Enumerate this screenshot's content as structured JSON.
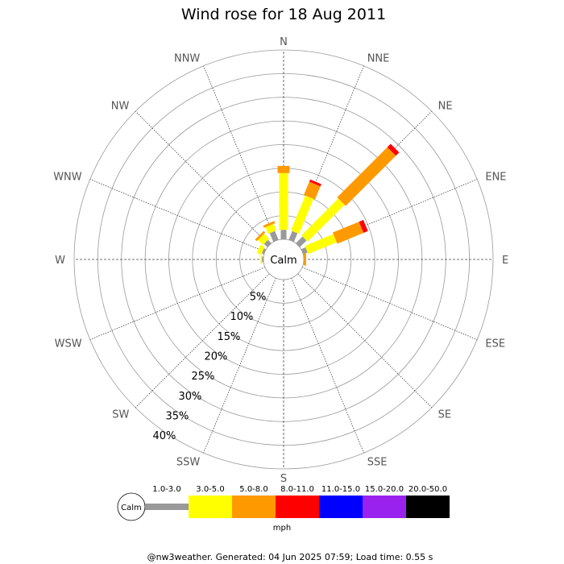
{
  "chart_data": {
    "type": "wind-rose",
    "title": "Wind rose for 18 Aug 2011",
    "directions": [
      "N",
      "NNE",
      "NE",
      "ENE",
      "E",
      "ESE",
      "SE",
      "SSE",
      "S",
      "SSW",
      "SW",
      "WSW",
      "W",
      "WNW",
      "NW",
      "NNW"
    ],
    "ring_labels": [
      "5%",
      "10%",
      "15%",
      "20%",
      "25%",
      "30%",
      "35%",
      "40%"
    ],
    "ring_max_pct": 40,
    "calm_label": "Calm",
    "bins": [
      {
        "label": "1.0-3.0",
        "color": "#999999"
      },
      {
        "label": "3.0-5.0",
        "color": "#ffff00"
      },
      {
        "label": "5.0-8.0",
        "color": "#ff9900"
      },
      {
        "label": "8.0-11.0",
        "color": "#ff0000"
      },
      {
        "label": "11.0-15.0",
        "color": "#0000ff"
      },
      {
        "label": "15.0-20.0",
        "color": "#9922ee"
      },
      {
        "label": "20.0-50.0",
        "color": "#000000"
      }
    ],
    "units": "mph",
    "calm_pct": 2.5,
    "series": [
      {
        "direction": "N",
        "values": [
          2.0,
          12.0,
          1.5,
          0.0,
          0,
          0,
          0
        ]
      },
      {
        "direction": "NNE",
        "values": [
          2.0,
          8.0,
          3.0,
          0.5,
          0,
          0,
          0
        ]
      },
      {
        "direction": "NE",
        "values": [
          2.0,
          11.0,
          15.0,
          1.0,
          0,
          0,
          0
        ]
      },
      {
        "direction": "ENE",
        "values": [
          1.0,
          6.5,
          6.0,
          1.0,
          0,
          0,
          0
        ]
      },
      {
        "direction": "E",
        "values": [
          0.0,
          0.0,
          0.5,
          0.0,
          0,
          0,
          0
        ]
      },
      {
        "direction": "ESE",
        "values": [
          0,
          0,
          0,
          0,
          0,
          0,
          0
        ]
      },
      {
        "direction": "SE",
        "values": [
          0,
          0,
          0,
          0,
          0,
          0,
          0
        ]
      },
      {
        "direction": "SSE",
        "values": [
          0,
          0,
          0,
          0,
          0,
          0,
          0
        ]
      },
      {
        "direction": "S",
        "values": [
          0,
          0,
          0,
          0,
          0,
          0,
          0
        ]
      },
      {
        "direction": "SSW",
        "values": [
          0,
          0,
          0,
          0,
          0,
          0,
          0
        ]
      },
      {
        "direction": "SW",
        "values": [
          0,
          0,
          0,
          0,
          0,
          0,
          0
        ]
      },
      {
        "direction": "WSW",
        "values": [
          0,
          0,
          0,
          0,
          0,
          0,
          0
        ]
      },
      {
        "direction": "W",
        "values": [
          0.3,
          0.3,
          0.0,
          0.0,
          0,
          0,
          0
        ]
      },
      {
        "direction": "WNW",
        "values": [
          0.5,
          1.0,
          0.0,
          0.0,
          0,
          0,
          0
        ]
      },
      {
        "direction": "NW",
        "values": [
          1.0,
          1.5,
          0.5,
          0.0,
          0,
          0,
          0
        ]
      },
      {
        "direction": "NNW",
        "values": [
          2.0,
          1.5,
          0.5,
          0.0,
          0,
          0,
          0
        ]
      }
    ]
  },
  "footer": "@nw3weather. Generated: 04 Jun 2025 07:59; Load time: 0.55 s",
  "colors": {
    "axis_text": "#555555",
    "grid": "#999999",
    "background": "#ffffff"
  }
}
